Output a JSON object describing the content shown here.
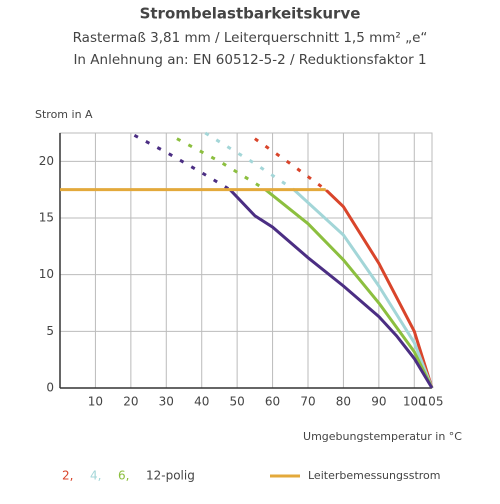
{
  "chart_data": {
    "type": "line",
    "title": "Strombelastbarkeitskurve",
    "subtitle": [
      "Rastermaß 3,81 mm / Leiterquerschnitt 1,5 mm² „e“",
      "In Anlehnung an: EN 60512-5-2 / Reduktionsfaktor 1"
    ],
    "y_label": "Strom in A",
    "x_label": "Umgebungstemperatur in °C",
    "xlim": [
      0,
      105
    ],
    "xticks": [
      10,
      20,
      30,
      40,
      50,
      60,
      70,
      80,
      90,
      100,
      105
    ],
    "ylim": [
      0,
      22.5
    ],
    "yticks": [
      0,
      5,
      10,
      15,
      20
    ],
    "grid": true,
    "series": [
      {
        "name": "2,",
        "color": "#d9452b",
        "x": [
          55,
          65,
          75,
          80,
          90,
          100,
          105
        ],
        "values": [
          22,
          19.8,
          17.5,
          16,
          11,
          5,
          0
        ]
      },
      {
        "name": "4,",
        "color": "#a3d6d8",
        "x": [
          41,
          55,
          66,
          80,
          90,
          100,
          105
        ],
        "values": [
          22.5,
          19.8,
          17.5,
          13.5,
          9,
          4,
          0
        ]
      },
      {
        "name": "6,",
        "color": "#8cbf3f",
        "x": [
          33,
          45,
          58,
          70,
          80,
          90,
          100,
          105
        ],
        "values": [
          22,
          20,
          17.5,
          14.5,
          11.3,
          7.5,
          3.2,
          0
        ]
      },
      {
        "name": "12-polig",
        "color": "#4b2e83",
        "x": [
          21,
          30,
          40,
          48,
          55,
          60,
          70,
          80,
          90,
          95,
          100,
          105
        ],
        "values": [
          22.3,
          20.8,
          19,
          17.5,
          15.2,
          14.2,
          11.5,
          9,
          6.3,
          4.6,
          2.6,
          0
        ]
      },
      {
        "name": "Leiterbemessungsstrom",
        "color": "#e3a93b",
        "x": [
          0,
          75
        ],
        "values": [
          17.5,
          17.5
        ]
      }
    ]
  }
}
